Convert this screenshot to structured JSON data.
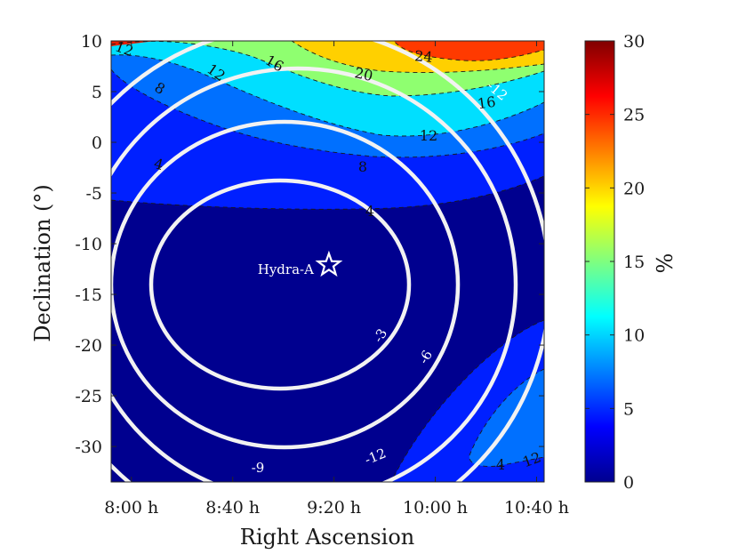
{
  "chart_data": {
    "type": "heatmap",
    "title": "",
    "xlabel": "Right Ascension",
    "ylabel": "Declination (°)",
    "colorbar_label": "%",
    "x_ticks": [
      "8:00 h",
      "8:40 h",
      "9:20 h",
      "10:00 h",
      "10:40 h"
    ],
    "x_tick_minutes": [
      480,
      520,
      560,
      600,
      640
    ],
    "xlim_minutes": [
      472,
      643
    ],
    "y_ticks": [
      "10",
      "5",
      "0",
      "-5",
      "-10",
      "-15",
      "-20",
      "-25",
      "-30"
    ],
    "y_tick_values": [
      10,
      5,
      0,
      -5,
      -10,
      -15,
      -20,
      -25,
      -30
    ],
    "ylim": [
      -33.5,
      10
    ],
    "colorbar_ticks": [
      "0",
      "5",
      "10",
      "15",
      "20",
      "25",
      "30"
    ],
    "colorbar_values": [
      0,
      5,
      10,
      15,
      20,
      25,
      30
    ],
    "clim": [
      0,
      30
    ],
    "colormap": "jet",
    "filled_contour_levels": [
      4,
      8,
      12,
      16,
      20,
      24,
      28
    ],
    "filled_contour_labels": [
      "12",
      "12",
      "16",
      "20",
      "24",
      "16",
      "12",
      "8",
      "8",
      "4",
      "4",
      "4",
      "12"
    ],
    "white_contour_levels": [
      -3,
      -6,
      -9,
      -12
    ],
    "white_contour_labels": [
      "-3",
      "-6",
      "-9",
      "-12",
      "-12"
    ],
    "source": {
      "name": "Hydra-A",
      "ra_minutes": 558,
      "dec": -12.1,
      "marker": "star-icon"
    },
    "colors": {
      "white_contour": "#f2f2f2",
      "dashed_contour": "#1a1a1a",
      "axis": "#262626"
    }
  }
}
